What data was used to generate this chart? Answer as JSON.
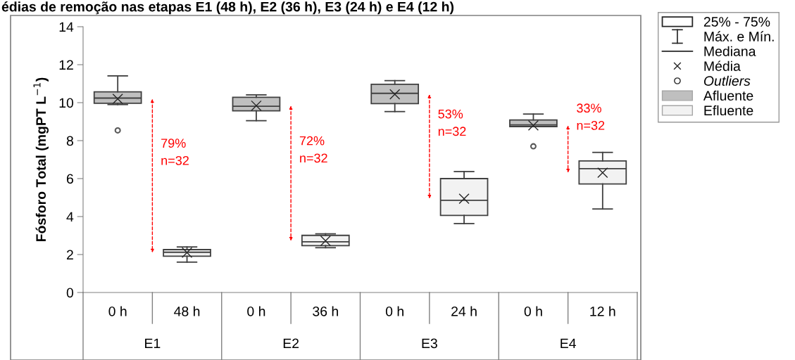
{
  "chart_data": {
    "type": "box",
    "title": "édias de remoção nas etapas E1 (48 h), E2 (36 h), E3 (24 h) e E4 (12 h)",
    "ylabel": "Fósforo Total (mgPT L$^{−1}$)",
    "categories": [
      "0 h",
      "48 h",
      "0 h",
      "36 h",
      "0 h",
      "24 h",
      "0 h",
      "12 h"
    ],
    "boxes": [
      {
        "low": 9.9,
        "q1": 9.97,
        "median": 10.24,
        "q3": 10.57,
        "high": 11.41,
        "mean": 10.2,
        "outliers": [
          8.54
        ]
      },
      {
        "low": 1.6,
        "q1": 1.91,
        "median": 2.12,
        "q3": 2.26,
        "high": 2.4,
        "mean": 2.1
      },
      {
        "low": 9.05,
        "q1": 9.57,
        "median": 9.81,
        "q3": 10.28,
        "high": 10.41,
        "mean": 9.84
      },
      {
        "low": 2.36,
        "q1": 2.47,
        "median": 2.67,
        "q3": 3.01,
        "high": 3.09,
        "mean": 2.72
      },
      {
        "low": 9.53,
        "q1": 9.95,
        "median": 10.49,
        "q3": 10.97,
        "high": 11.16,
        "mean": 10.44
      },
      {
        "low": 3.63,
        "q1": 4.06,
        "median": 4.86,
        "q3": 6.0,
        "high": 6.37,
        "mean": 4.94
      },
      {
        "low": 8.74,
        "q1": 8.74,
        "median": 8.83,
        "q3": 9.09,
        "high": 9.4,
        "mean": 8.8,
        "outliers": [
          7.7
        ]
      },
      {
        "low": 4.4,
        "q1": 5.72,
        "median": 6.52,
        "q3": 6.93,
        "high": 7.38,
        "mean": 6.31
      }
    ],
    "colors": [
      "#bfbfbf",
      "#f2f2f2",
      "#bfbfbf",
      "#f2f2f2",
      "#bfbfbf",
      "#f2f2f2",
      "#bfbfbf",
      "#f2f2f2"
    ],
    "ylim": [
      0,
      14
    ],
    "yticks": [
      0,
      2,
      4,
      6,
      8,
      10,
      12,
      14
    ],
    "annotations": [
      "E1",
      "E2",
      "E3",
      "E4",
      "79%\nn=32",
      "72%\nn=32",
      "53%\nn=32",
      "33%\nn=32",
      "25% - 75%",
      "Máx. e Mín.",
      "Mediana",
      "Média",
      "Outliers",
      "Afluente",
      "Efluente"
    ],
    "marker": "cross"
  }
}
